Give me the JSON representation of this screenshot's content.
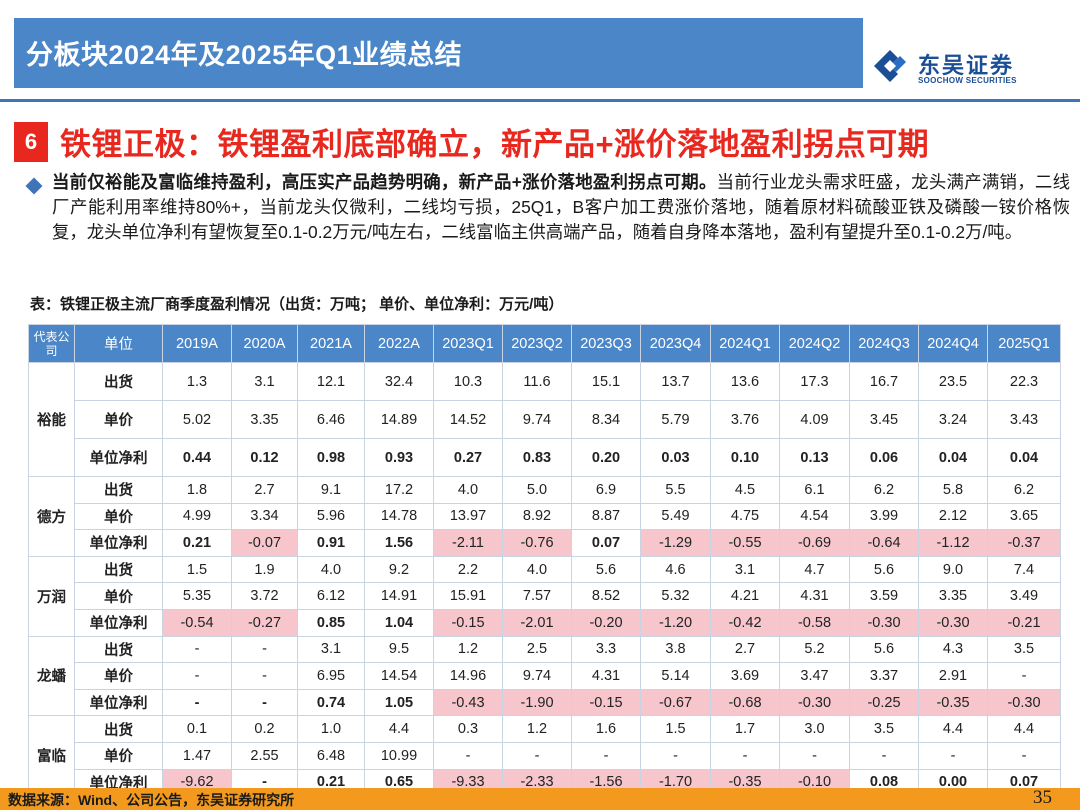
{
  "header": {
    "title": "分板块2024年及2025年Q1业绩总结",
    "logo_cn": "东吴证券",
    "logo_en": "SOOCHOW SECURITIES"
  },
  "section": {
    "number": "6",
    "title": "铁锂正极：铁锂盈利底部确立，新产品+涨价落地盈利拐点可期"
  },
  "body": {
    "bold_lead": "当前仅裕能及富临维持盈利，高压实产品趋势明确，新产品+涨价落地盈利拐点可期。",
    "text": "当前行业龙头需求旺盛，龙头满产满销，二线厂产能利用率维持80%+，当前龙头仅微利，二线均亏损，25Q1，B客户加工费涨价落地，随着原材料硫酸亚铁及磷酸一铵价格恢复，龙头单位净利有望恢复至0.1-0.2万元/吨左右，二线富临主供高端产品，随着自身降本落地，盈利有望提升至0.1-0.2万/吨。"
  },
  "table": {
    "caption": "表：铁锂正极主流厂商季度盈利情况（出货：万吨；  单价、单位净利：万元/吨）",
    "corner_label": "代表公司",
    "unit_label": "单位",
    "columns": [
      "2019A",
      "2020A",
      "2021A",
      "2022A",
      "2023Q1",
      "2023Q2",
      "2023Q3",
      "2023Q4",
      "2024Q1",
      "2024Q2",
      "2024Q3",
      "2024Q4",
      "2025Q1"
    ],
    "companies": [
      {
        "name": "裕能",
        "rows": [
          {
            "metric": "出货",
            "values": [
              "1.3",
              "3.1",
              "12.1",
              "32.4",
              "10.3",
              "11.6",
              "15.1",
              "13.7",
              "13.6",
              "17.3",
              "16.7",
              "23.5",
              "22.3"
            ]
          },
          {
            "metric": "单价",
            "values": [
              "5.02",
              "3.35",
              "6.46",
              "14.89",
              "14.52",
              "9.74",
              "8.34",
              "5.79",
              "3.76",
              "4.09",
              "3.45",
              "3.24",
              "3.43"
            ]
          },
          {
            "metric": "单位净利",
            "values": [
              "0.44",
              "0.12",
              "0.98",
              "0.93",
              "0.27",
              "0.83",
              "0.20",
              "0.03",
              "0.10",
              "0.13",
              "0.06",
              "0.04",
              "0.04"
            ]
          }
        ]
      },
      {
        "name": "德方",
        "rows": [
          {
            "metric": "出货",
            "values": [
              "1.8",
              "2.7",
              "9.1",
              "17.2",
              "4.0",
              "5.0",
              "6.9",
              "5.5",
              "4.5",
              "6.1",
              "6.2",
              "5.8",
              "6.2"
            ]
          },
          {
            "metric": "单价",
            "values": [
              "4.99",
              "3.34",
              "5.96",
              "14.78",
              "13.97",
              "8.92",
              "8.87",
              "5.49",
              "4.75",
              "4.54",
              "3.99",
              "2.12",
              "3.65"
            ]
          },
          {
            "metric": "单位净利",
            "values": [
              "0.21",
              "-0.07",
              "0.91",
              "1.56",
              "-2.11",
              "-0.76",
              "0.07",
              "-1.29",
              "-0.55",
              "-0.69",
              "-0.64",
              "-1.12",
              "-0.37"
            ]
          }
        ]
      },
      {
        "name": "万润",
        "rows": [
          {
            "metric": "出货",
            "values": [
              "1.5",
              "1.9",
              "4.0",
              "9.2",
              "2.2",
              "4.0",
              "5.6",
              "4.6",
              "3.1",
              "4.7",
              "5.6",
              "9.0",
              "7.4"
            ]
          },
          {
            "metric": "单价",
            "values": [
              "5.35",
              "3.72",
              "6.12",
              "14.91",
              "15.91",
              "7.57",
              "8.52",
              "5.32",
              "4.21",
              "4.31",
              "3.59",
              "3.35",
              "3.49"
            ]
          },
          {
            "metric": "单位净利",
            "values": [
              "-0.54",
              "-0.27",
              "0.85",
              "1.04",
              "-0.15",
              "-2.01",
              "-0.20",
              "-1.20",
              "-0.42",
              "-0.58",
              "-0.30",
              "-0.30",
              "-0.21"
            ]
          }
        ]
      },
      {
        "name": "龙蟠",
        "rows": [
          {
            "metric": "出货",
            "values": [
              "-",
              "-",
              "3.1",
              "9.5",
              "1.2",
              "2.5",
              "3.3",
              "3.8",
              "2.7",
              "5.2",
              "5.6",
              "4.3",
              "3.5"
            ]
          },
          {
            "metric": "单价",
            "values": [
              "-",
              "-",
              "6.95",
              "14.54",
              "14.96",
              "9.74",
              "4.31",
              "5.14",
              "3.69",
              "3.47",
              "3.37",
              "2.91",
              "-"
            ]
          },
          {
            "metric": "单位净利",
            "values": [
              "-",
              "-",
              "0.74",
              "1.05",
              "-0.43",
              "-1.90",
              "-0.15",
              "-0.67",
              "-0.68",
              "-0.30",
              "-0.25",
              "-0.35",
              "-0.30"
            ]
          }
        ]
      },
      {
        "name": "富临",
        "rows": [
          {
            "metric": "出货",
            "values": [
              "0.1",
              "0.2",
              "1.0",
              "4.4",
              "0.3",
              "1.2",
              "1.6",
              "1.5",
              "1.7",
              "3.0",
              "3.5",
              "4.4",
              "4.4"
            ]
          },
          {
            "metric": "单价",
            "values": [
              "1.47",
              "2.55",
              "6.48",
              "10.99",
              "-",
              "-",
              "-",
              "-",
              "-",
              "-",
              "-",
              "-",
              "-"
            ]
          },
          {
            "metric": "单位净利",
            "values": [
              "-9.62",
              "-",
              "0.21",
              "0.65",
              "-9.33",
              "-2.33",
              "-1.56",
              "-1.70",
              "-0.35",
              "-0.10",
              "0.08",
              "0.00",
              "0.07"
            ]
          }
        ]
      }
    ],
    "negative_highlight_color": "#f7c6cd"
  },
  "footer": {
    "source": "数据来源：Wind、公司公告，东吴证券研究所",
    "page": "35"
  }
}
